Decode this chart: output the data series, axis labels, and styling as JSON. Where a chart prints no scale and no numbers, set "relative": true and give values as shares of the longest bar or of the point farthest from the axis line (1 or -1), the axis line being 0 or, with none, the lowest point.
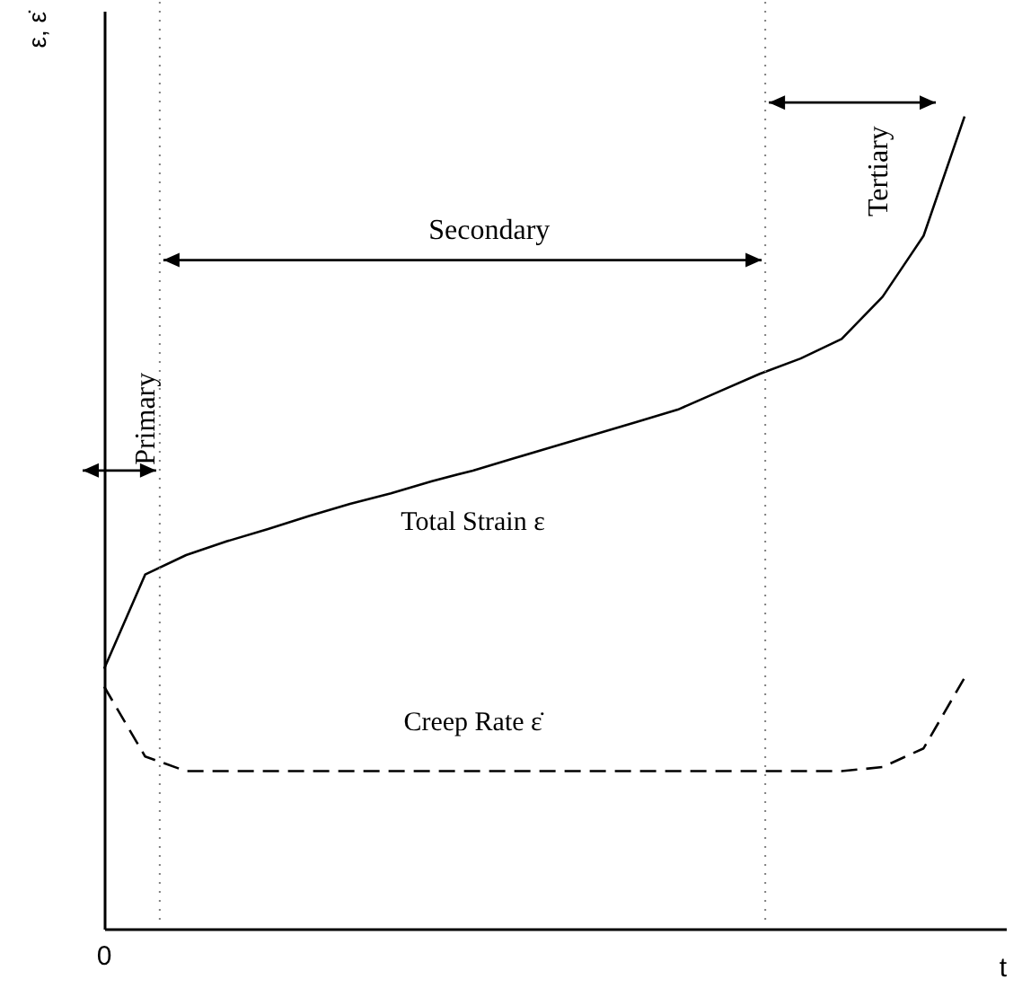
{
  "chart_data": {
    "type": "line",
    "relative": true,
    "xlabel": "t",
    "ylabel": "ε, ε̇",
    "categories": [
      null,
      null,
      null,
      null,
      null,
      null,
      null,
      null,
      null,
      null,
      null,
      null,
      null,
      null,
      null,
      null,
      null,
      null,
      null,
      null,
      null,
      null
    ],
    "series": [
      {
        "name": "Total Strain ε",
        "color": "#000000",
        "line_style": "solid",
        "values": [
          0.32,
          0.436,
          0.46,
          0.477,
          0.492,
          0.508,
          0.523,
          0.536,
          0.551,
          0.564,
          0.579,
          0.594,
          0.609,
          0.624,
          0.639,
          0.661,
          0.683,
          0.702,
          0.726,
          0.778,
          0.853,
          1
        ]
      },
      {
        "name": "Creep Rate ε̇",
        "color": "#000000",
        "line_style": "dashed",
        "values": [
          0.298,
          0.212,
          0.194,
          0.194,
          0.194,
          0.194,
          0.194,
          0.194,
          0.194,
          0.194,
          0.194,
          0.194,
          0.194,
          0.194,
          0.194,
          0.194,
          0.194,
          0.194,
          0.194,
          0.199,
          0.222,
          0.309
        ]
      }
    ],
    "annotations": [
      "0",
      "Primary",
      "Secondary",
      "Tertiary"
    ]
  }
}
